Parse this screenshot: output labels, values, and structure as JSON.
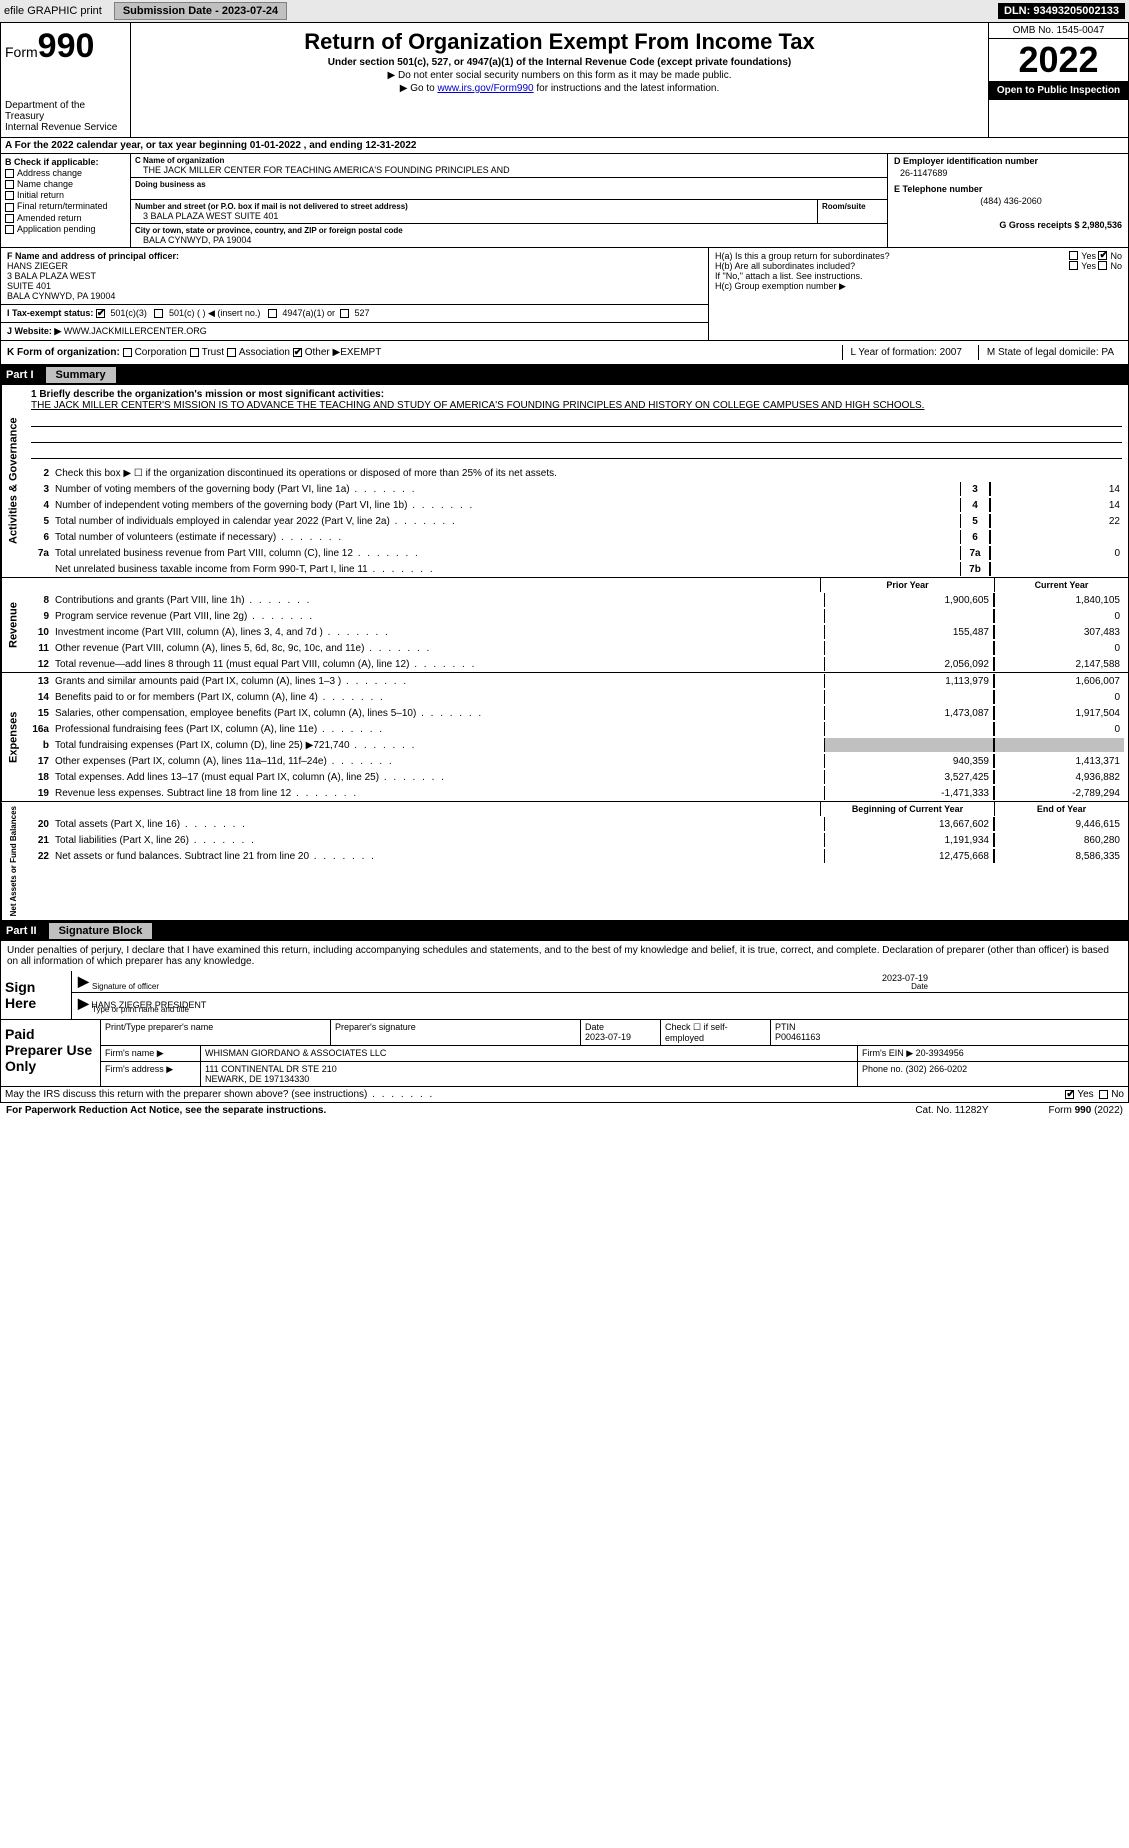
{
  "topbar": {
    "efile": "efile GRAPHIC print",
    "submission": "Submission Date - 2023-07-24",
    "dln": "DLN: 93493205002133"
  },
  "header": {
    "form_prefix": "Form",
    "form_num": "990",
    "dept": "Department of the Treasury",
    "irs": "Internal Revenue Service",
    "title": "Return of Organization Exempt From Income Tax",
    "subtitle": "Under section 501(c), 527, or 4947(a)(1) of the Internal Revenue Code (except private foundations)",
    "note1": "▶ Do not enter social security numbers on this form as it may be made public.",
    "note2_pre": "▶ Go to ",
    "note2_link": "www.irs.gov/Form990",
    "note2_post": " for instructions and the latest information.",
    "omb": "OMB No. 1545-0047",
    "year": "2022",
    "open": "Open to Public Inspection"
  },
  "rowA": "For the 2022 calendar year, or tax year beginning 01-01-2022    , and ending 12-31-2022",
  "colB": {
    "title": "B Check if applicable:",
    "items": [
      "Address change",
      "Name change",
      "Initial return",
      "Final return/terminated",
      "Amended return",
      "Application pending"
    ]
  },
  "colC": {
    "name_label": "C Name of organization",
    "name": "THE JACK MILLER CENTER FOR TEACHING AMERICA'S FOUNDING PRINCIPLES AND",
    "dba_label": "Doing business as",
    "street_label": "Number and street (or P.O. box if mail is not delivered to street address)",
    "room_label": "Room/suite",
    "street": "3 BALA PLAZA WEST SUITE 401",
    "city_label": "City or town, state or province, country, and ZIP or foreign postal code",
    "city": "BALA CYNWYD, PA  19004"
  },
  "colDE": {
    "d_label": "D Employer identification number",
    "d_val": "26-1147689",
    "e_label": "E Telephone number",
    "e_val": "(484) 436-2060",
    "g_label": "G Gross receipts $ 2,980,536"
  },
  "rowF": {
    "label": "F  Name and address of principal officer:",
    "name": "HANS ZIEGER",
    "addr1": "3 BALA PLAZA WEST",
    "addr2": "SUITE 401",
    "addr3": "BALA CYNWYD, PA  19004"
  },
  "rowH": {
    "ha": "H(a)  Is this a group return for subordinates?",
    "hb": "H(b)  Are all subordinates included?",
    "hb_note": "If \"No,\" attach a list. See instructions.",
    "hc": "H(c)  Group exemption number ▶",
    "yes": "Yes",
    "no": "No"
  },
  "rowI": {
    "label": "I    Tax-exempt status:",
    "c3": "501(c)(3)",
    "c": "501(c) (  ) ◀ (insert no.)",
    "a1": "4947(a)(1) or",
    "s527": "527"
  },
  "rowJ": {
    "label": "J   Website: ▶",
    "val": "WWW.JACKMILLERCENTER.ORG"
  },
  "rowK": {
    "label": "K Form of organization:",
    "corp": "Corporation",
    "trust": "Trust",
    "assoc": "Association",
    "other": "Other ▶",
    "other_val": "EXEMPT",
    "l_label": "L Year of formation: 2007",
    "m_label": "M State of legal domicile: PA"
  },
  "part1": {
    "num": "Part I",
    "title": "Summary"
  },
  "summary": {
    "l1_label": "1  Briefly describe the organization's mission or most significant activities:",
    "l1_text": "THE JACK MILLER CENTER'S MISSION IS TO ADVANCE THE TEACHING AND STUDY OF AMERICA'S FOUNDING PRINCIPLES AND HISTORY ON COLLEGE CAMPUSES AND HIGH SCHOOLS.",
    "l2": "Check this box ▶ ☐  if the organization discontinued its operations or disposed of more than 25% of its net assets.",
    "lines_small": [
      {
        "n": "3",
        "desc": "Number of voting members of the governing body (Part VI, line 1a)",
        "box": "3",
        "val": "14"
      },
      {
        "n": "4",
        "desc": "Number of independent voting members of the governing body (Part VI, line 1b)",
        "box": "4",
        "val": "14"
      },
      {
        "n": "5",
        "desc": "Total number of individuals employed in calendar year 2022 (Part V, line 2a)",
        "box": "5",
        "val": "22"
      },
      {
        "n": "6",
        "desc": "Total number of volunteers (estimate if necessary)",
        "box": "6",
        "val": ""
      },
      {
        "n": "7a",
        "desc": "Total unrelated business revenue from Part VIII, column (C), line 12",
        "box": "7a",
        "val": "0"
      },
      {
        "n": "",
        "desc": "Net unrelated business taxable income from Form 990-T, Part I, line 11",
        "box": "7b",
        "val": ""
      }
    ],
    "col_prior": "Prior Year",
    "col_current": "Current Year",
    "col_begin": "Beginning of Current Year",
    "col_end": "End of Year",
    "revenue": [
      {
        "n": "8",
        "desc": "Contributions and grants (Part VIII, line 1h)",
        "pr": "1,900,605",
        "cu": "1,840,105"
      },
      {
        "n": "9",
        "desc": "Program service revenue (Part VIII, line 2g)",
        "pr": "",
        "cu": "0"
      },
      {
        "n": "10",
        "desc": "Investment income (Part VIII, column (A), lines 3, 4, and 7d )",
        "pr": "155,487",
        "cu": "307,483"
      },
      {
        "n": "11",
        "desc": "Other revenue (Part VIII, column (A), lines 5, 6d, 8c, 9c, 10c, and 11e)",
        "pr": "",
        "cu": "0"
      },
      {
        "n": "12",
        "desc": "Total revenue—add lines 8 through 11 (must equal Part VIII, column (A), line 12)",
        "pr": "2,056,092",
        "cu": "2,147,588"
      }
    ],
    "expenses": [
      {
        "n": "13",
        "desc": "Grants and similar amounts paid (Part IX, column (A), lines 1–3 )",
        "pr": "1,113,979",
        "cu": "1,606,007"
      },
      {
        "n": "14",
        "desc": "Benefits paid to or for members (Part IX, column (A), line 4)",
        "pr": "",
        "cu": "0"
      },
      {
        "n": "15",
        "desc": "Salaries, other compensation, employee benefits (Part IX, column (A), lines 5–10)",
        "pr": "1,473,087",
        "cu": "1,917,504"
      },
      {
        "n": "16a",
        "desc": "Professional fundraising fees (Part IX, column (A), line 11e)",
        "pr": "",
        "cu": "0"
      },
      {
        "n": "b",
        "desc": "Total fundraising expenses (Part IX, column (D), line 25) ▶721,740",
        "pr": "SHADE",
        "cu": "SHADE"
      },
      {
        "n": "17",
        "desc": "Other expenses (Part IX, column (A), lines 11a–11d, 11f–24e)",
        "pr": "940,359",
        "cu": "1,413,371"
      },
      {
        "n": "18",
        "desc": "Total expenses. Add lines 13–17 (must equal Part IX, column (A), line 25)",
        "pr": "3,527,425",
        "cu": "4,936,882"
      },
      {
        "n": "19",
        "desc": "Revenue less expenses. Subtract line 18 from line 12",
        "pr": "-1,471,333",
        "cu": "-2,789,294"
      }
    ],
    "netassets": [
      {
        "n": "20",
        "desc": "Total assets (Part X, line 16)",
        "pr": "13,667,602",
        "cu": "9,446,615"
      },
      {
        "n": "21",
        "desc": "Total liabilities (Part X, line 26)",
        "pr": "1,191,934",
        "cu": "860,280"
      },
      {
        "n": "22",
        "desc": "Net assets or fund balances. Subtract line 21 from line 20",
        "pr": "12,475,668",
        "cu": "8,586,335"
      }
    ]
  },
  "side_labels": {
    "gov": "Activities & Governance",
    "rev": "Revenue",
    "exp": "Expenses",
    "net": "Net Assets or Fund Balances"
  },
  "part2": {
    "num": "Part II",
    "title": "Signature Block"
  },
  "sig": {
    "penalty": "Under penalties of perjury, I declare that I have examined this return, including accompanying schedules and statements, and to the best of my knowledge and belief, it is true, correct, and complete. Declaration of preparer (other than officer) is based on all information of which preparer has any knowledge.",
    "sign_here": "Sign Here",
    "sig_officer": "Signature of officer",
    "date1": "2023-07-19",
    "date_label": "Date",
    "name": "HANS ZIEGER  PRESIDENT",
    "name_label": "Type or print name and title"
  },
  "paid": {
    "label": "Paid Preparer Use Only",
    "h_name": "Print/Type preparer's name",
    "h_sig": "Preparer's signature",
    "h_date": "Date",
    "date": "2023-07-19",
    "h_check": "Check ☐ if self-employed",
    "h_ptin": "PTIN",
    "ptin": "P00461163",
    "firm_label": "Firm's name    ▶",
    "firm": "WHISMAN GIORDANO & ASSOCIATES LLC",
    "ein_label": "Firm's EIN ▶",
    "ein": "20-3934956",
    "addr_label": "Firm's address ▶",
    "addr1": "111 CONTINENTAL DR STE 210",
    "addr2": "NEWARK, DE  197134330",
    "phone_label": "Phone no.",
    "phone": "(302) 266-0202"
  },
  "may": {
    "text": "May the IRS discuss this return with the preparer shown above? (see instructions)",
    "yes": "Yes",
    "no": "No"
  },
  "footer": {
    "left": "For Paperwork Reduction Act Notice, see the separate instructions.",
    "mid": "Cat. No. 11282Y",
    "right": "Form 990 (2022)"
  }
}
